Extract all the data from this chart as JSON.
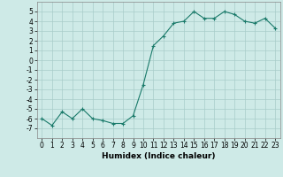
{
  "x": [
    0,
    1,
    2,
    3,
    4,
    5,
    6,
    7,
    8,
    9,
    10,
    11,
    12,
    13,
    14,
    15,
    16,
    17,
    18,
    19,
    20,
    21,
    22,
    23
  ],
  "y": [
    -6.0,
    -6.7,
    -5.3,
    -6.0,
    -5.0,
    -6.0,
    -6.2,
    -6.5,
    -6.5,
    -5.7,
    -2.5,
    1.5,
    2.5,
    3.8,
    4.0,
    5.0,
    4.3,
    4.3,
    5.0,
    4.7,
    4.0,
    3.8,
    4.3,
    3.3
  ],
  "line_color": "#1a7a6a",
  "marker": "+",
  "marker_size": 3,
  "marker_linewidth": 0.8,
  "line_width": 0.8,
  "bg_color": "#ceeae7",
  "grid_color": "#a8ccc9",
  "xlabel": "Humidex (Indice chaleur)",
  "ylim": [
    -8,
    6
  ],
  "xlim": [
    -0.5,
    23.5
  ],
  "yticks": [
    -7,
    -6,
    -5,
    -4,
    -3,
    -2,
    -1,
    0,
    1,
    2,
    3,
    4,
    5
  ],
  "xticks": [
    0,
    1,
    2,
    3,
    4,
    5,
    6,
    7,
    8,
    9,
    10,
    11,
    12,
    13,
    14,
    15,
    16,
    17,
    18,
    19,
    20,
    21,
    22,
    23
  ],
  "xlabel_fontsize": 6.5,
  "tick_fontsize": 5.5,
  "spine_color": "#888888"
}
